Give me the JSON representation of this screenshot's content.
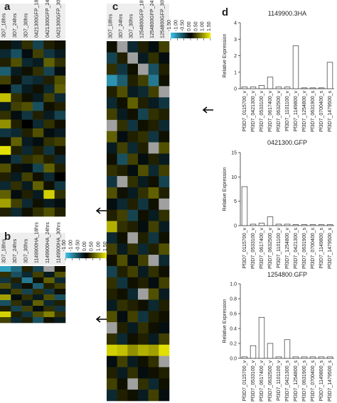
{
  "chart_data": [
    {
      "type": "heatmap",
      "panel_label": "a",
      "columns": [
        "3D7_18hrs",
        "3D7_24hrs",
        "3D7_30hrs",
        "0421300GFP_18hrs",
        "0421300GFP_24hrs",
        "0421300GFP_30hrs"
      ],
      "values": [
        [
          0.1,
          -0.2,
          0.3,
          -0.5,
          0.2,
          0.1
        ],
        [
          -0.3,
          -0.6,
          -0.1,
          0.4,
          -0.4,
          -0.2
        ],
        [
          0.2,
          0.5,
          -0.3,
          -0.2,
          0.6,
          0.3
        ],
        [
          -0.7,
          -0.2,
          0.1,
          0.3,
          -0.5,
          -0.1
        ],
        [
          0.4,
          0.1,
          -0.4,
          -0.3,
          0.2,
          0.5
        ],
        [
          0.0,
          -0.5,
          -0.2,
          0.1,
          -0.3,
          0.6
        ],
        [
          1.2,
          0.3,
          0.1,
          -0.2,
          0.4,
          -0.3
        ],
        [
          -0.2,
          0.4,
          0.5,
          -0.6,
          0.1,
          0.2
        ],
        [
          0.3,
          -0.1,
          -0.4,
          0.2,
          -0.2,
          -0.5
        ],
        [
          0.9,
          0.2,
          0.0,
          -0.3,
          0.3,
          0.1
        ],
        [
          -0.4,
          -0.3,
          0.2,
          0.5,
          -0.1,
          -0.2
        ],
        [
          0.1,
          0.6,
          -0.2,
          -0.1,
          0.3,
          0.4
        ],
        [
          1.4,
          0.2,
          -0.3,
          0.2,
          -0.4,
          0.1
        ],
        [
          -0.1,
          -0.4,
          0.3,
          0.4,
          0.2,
          -0.3
        ],
        [
          0.5,
          0.1,
          -0.1,
          -0.5,
          0.6,
          0.2
        ],
        [
          0.2,
          -0.2,
          0.4,
          0.1,
          -0.3,
          0.0
        ],
        [
          -0.3,
          0.3,
          -0.2,
          0.6,
          0.1,
          -0.4
        ],
        [
          0.6,
          -0.1,
          0.2,
          -0.2,
          1.3,
          0.3
        ],
        [
          1.0,
          0.4,
          -0.3,
          0.1,
          -0.2,
          -0.1
        ],
        [
          0.2,
          -0.3,
          0.1,
          0.3,
          0.5,
          0.2
        ]
      ],
      "clim": [
        -1.5,
        1.5
      ],
      "colors": [
        "#3ec8f0",
        "#000000",
        "#f2f000"
      ],
      "missing_color": "#a0a0a0"
    },
    {
      "type": "heatmap",
      "panel_label": "b",
      "columns": [
        "3D7_18hrs",
        "3D7_24hrs",
        "3D7_30hrs",
        "1149900HA_18hrs",
        "1149900HA_24hrs",
        "1149900HA_30hrs"
      ],
      "values": [
        [
          -1.2,
          -0.8,
          0.2,
          -0.5,
          null,
          0.1
        ],
        [
          0.3,
          -0.6,
          -0.3,
          0.4,
          -0.2,
          0.5
        ],
        [
          -0.4,
          0.2,
          -0.9,
          0.1,
          0.6,
          -0.3
        ],
        [
          0.5,
          -0.3,
          0.1,
          -0.7,
          0.2,
          0.4
        ],
        [
          -0.2,
          0.4,
          -0.5,
          0.3,
          -0.4,
          0.1
        ],
        [
          1.0,
          -0.1,
          0.3,
          -0.2,
          0.5,
          -0.6
        ],
        [
          -0.6,
          0.3,
          -0.2,
          0.6,
          -0.3,
          0.2
        ],
        [
          0.2,
          -0.5,
          0.4,
          -0.1,
          0.3,
          -0.4
        ],
        [
          1.3,
          0.2,
          -0.4,
          0.5,
          0.8,
          0.3
        ],
        [
          0.4,
          -0.3,
          0.2,
          -0.6,
          0.1,
          -0.2
        ]
      ],
      "clim": [
        -1.5,
        1.5
      ],
      "colors": [
        "#3ec8f0",
        "#000000",
        "#f2f000"
      ],
      "missing_color": "#a0a0a0",
      "colorbar_ticks": [
        {
          "value": -1.5,
          "label": "-1.50"
        },
        {
          "value": -1,
          "label": "-1.00"
        },
        {
          "value": -0.5,
          "label": "-0.50"
        },
        {
          "value": 0,
          "label": "0.00"
        },
        {
          "value": 0.5,
          "label": "0.50"
        },
        {
          "value": 1,
          "label": "1.00"
        },
        {
          "value": 1.5,
          "label": "1.50"
        }
      ]
    },
    {
      "type": "heatmap",
      "panel_label": "c",
      "columns": [
        "3D7_18hrs",
        "3D7_24hrs",
        "3D7_30hrs",
        "1254800GFP_18hrs",
        "1254800GFP_24hrs",
        "1254800GFP_30hrs"
      ],
      "values": [
        [
          0.1,
          null,
          -0.3,
          0.2,
          -0.1,
          0.4
        ],
        [
          -0.5,
          0.2,
          null,
          -0.2,
          0.3,
          -0.1
        ],
        [
          0.3,
          -0.4,
          0.1,
          null,
          -0.6,
          0.2
        ],
        [
          -1.1,
          -0.7,
          0.2,
          0.4,
          -0.9,
          0.1
        ],
        [
          0.2,
          0.5,
          -0.2,
          -0.3,
          0.4,
          null
        ],
        [
          -0.3,
          0.1,
          0.6,
          0.2,
          -0.2,
          -0.4
        ],
        [
          0.4,
          -0.2,
          0.1,
          -0.5,
          0.3,
          0.2
        ],
        [
          null,
          0.3,
          -0.4,
          0.1,
          0.2,
          -0.3
        ],
        [
          0.6,
          -0.1,
          0.2,
          0.3,
          -0.4,
          0.1
        ],
        [
          -0.2,
          0.4,
          -0.3,
          0.2,
          null,
          0.5
        ],
        [
          0.1,
          -0.6,
          0.4,
          -0.1,
          0.2,
          -0.2
        ],
        [
          0.3,
          0.2,
          -0.1,
          0.5,
          -0.3,
          0.4
        ],
        [
          -0.4,
          null,
          0.3,
          -0.2,
          0.1,
          -0.5
        ],
        [
          0.5,
          0.1,
          -0.2,
          0.3,
          0.6,
          0.2
        ],
        [
          -0.1,
          -0.3,
          0.2,
          -0.4,
          0.1,
          null
        ],
        [
          0.2,
          0.4,
          -0.5,
          0.1,
          -0.2,
          0.3
        ],
        [
          1.1,
          0.3,
          0.2,
          -0.1,
          0.4,
          -0.2
        ],
        [
          -0.3,
          0.1,
          null,
          0.2,
          -0.4,
          0.1
        ],
        [
          0.4,
          -0.2,
          0.3,
          -0.3,
          0.2,
          0.5
        ],
        [
          0.1,
          0.5,
          -0.1,
          0.4,
          null,
          -0.3
        ],
        [
          -0.5,
          0.2,
          0.4,
          -0.2,
          0.3,
          0.1
        ],
        [
          0.3,
          -0.4,
          0.1,
          0.2,
          -0.1,
          0.4
        ],
        [
          0.2,
          0.1,
          -0.3,
          null,
          0.5,
          -0.2
        ],
        [
          -0.2,
          0.3,
          0.2,
          0.1,
          -0.3,
          0.2
        ],
        [
          0.5,
          -0.1,
          0.4,
          -0.4,
          0.2,
          0.1
        ],
        [
          null,
          0.2,
          -0.2,
          0.3,
          0.1,
          -0.1
        ],
        [
          0.3,
          -0.3,
          0.1,
          0.2,
          -0.2,
          0.4
        ],
        [
          1.3,
          1.2,
          0.9,
          1.1,
          1.0,
          1.4
        ],
        [
          -0.1,
          0.4,
          -0.2,
          0.1,
          0.3,
          null
        ],
        [
          0.2,
          -0.2,
          0.3,
          -0.1,
          0.1,
          0.2
        ],
        [
          0.4,
          0.1,
          null,
          0.3,
          -0.3,
          0.1
        ],
        [
          -0.3,
          0.2,
          0.1,
          -0.2,
          0.4,
          -0.1
        ]
      ],
      "clim": [
        -1.5,
        1.5
      ],
      "colors": [
        "#3ec8f0",
        "#000000",
        "#f2f000"
      ],
      "missing_color": "#a0a0a0",
      "colorbar_ticks": [
        {
          "value": -1.5,
          "label": "-1.50"
        },
        {
          "value": -1,
          "label": "-1.00"
        },
        {
          "value": -0.5,
          "label": "-0.50"
        },
        {
          "value": 0,
          "label": "0.00"
        },
        {
          "value": 0.5,
          "label": "0.50"
        },
        {
          "value": 1,
          "label": "1.00"
        },
        {
          "value": 1.5,
          "label": "1.50"
        }
      ]
    },
    {
      "type": "bar",
      "panel_label": "d",
      "title": "1149900.3HA",
      "ylabel": "Relative Expression",
      "categories": [
        "Pf3D7_0115700_v",
        "Pf3D7_0421300_v",
        "Pf3D7_0533100_v",
        "Pf3D7_0617400_v",
        "Pf3D7_0632500_v",
        "Pf3D7_1101100_v",
        "Pf3D7_1149800_v",
        "Pf3D7_1254800_v",
        "Pf3D7_0631900_s",
        "Pf3D7_0700400_s",
        "Pf3D7_1479500_s"
      ],
      "values": [
        0.1,
        0.1,
        0.2,
        0.7,
        0.1,
        0.1,
        2.6,
        0.05,
        0.05,
        0.05,
        1.6
      ],
      "ylim": [
        0,
        4
      ],
      "yticks": [
        0,
        1,
        2,
        3,
        4
      ],
      "color": "#ffffff",
      "edgecolor": "#333333"
    },
    {
      "type": "bar",
      "title": "0421300.GFP",
      "ylabel": "Relative Expression",
      "categories": [
        "Pf3D7_0115700_v",
        "Pf3D7_0533100_v",
        "Pf3D7_0617400_v",
        "Pf3D7_0632500_v",
        "Pf3D7_1101100_v",
        "Pf3D7_1254800_v",
        "Pf3D7_0421300_s",
        "Pf3D7_0631900_s",
        "Pf3D7_0700400_s",
        "Pf3D7_1149800_s",
        "Pf3D7_1479500_s"
      ],
      "values": [
        8,
        0.3,
        0.5,
        1.8,
        0.3,
        0.3,
        0.2,
        0.2,
        0.2,
        0.2,
        0.2
      ],
      "ylim": [
        0,
        15
      ],
      "yticks": [
        0,
        5,
        10,
        15
      ],
      "color": "#ffffff",
      "edgecolor": "#333333"
    },
    {
      "type": "bar",
      "title": "1254800.GFP",
      "ylabel": "Relative Expression",
      "categories": [
        "Pf3D7_0115700_v",
        "Pf3D7_0533100_v",
        "Pf3D7_0617400_v",
        "Pf3D7_0632500_v",
        "Pf3D7_1101100_v",
        "Pf3D7_0421300_s",
        "Pf3D7_1254800_s",
        "Pf3D7_0631900_s",
        "Pf3D7_0700400_s",
        "Pf3D7_1149800_s",
        "Pf3D7_1479500_s"
      ],
      "values": [
        0.02,
        0.17,
        0.55,
        0.2,
        0.02,
        0.25,
        0.02,
        0.02,
        0.02,
        0.02,
        0.02
      ],
      "ylim": [
        0,
        1
      ],
      "yticks": [
        {
          "value": 0,
          "label": "0.0"
        },
        {
          "value": 0.2,
          "label": "0.2"
        },
        {
          "value": 0.4,
          "label": "0.4"
        },
        {
          "value": 0.6,
          "label": "0.6"
        },
        {
          "value": 0.8,
          "label": "0.8"
        },
        {
          "value": 1,
          "label": "1.0"
        }
      ],
      "color": "#ffffff",
      "edgecolor": "#333333"
    }
  ]
}
